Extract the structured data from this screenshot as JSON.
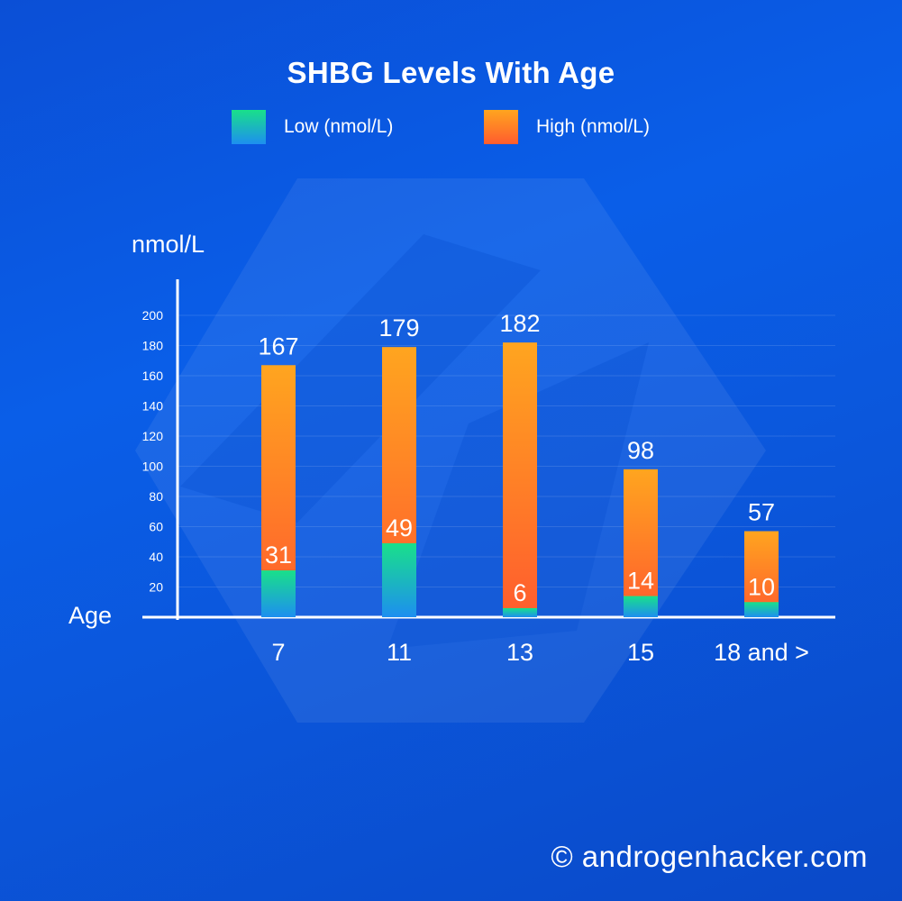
{
  "chart_data": {
    "type": "bar",
    "title": "SHBG Levels With Age",
    "ylabel": "nmol/L",
    "xlabel": "Age",
    "ylim": [
      0,
      200
    ],
    "yticks": [
      20,
      40,
      60,
      80,
      100,
      120,
      140,
      160,
      180,
      200
    ],
    "grid": true,
    "legend_position": "top",
    "categories": [
      "7",
      "11",
      "13",
      "15",
      "18 and >"
    ],
    "series": [
      {
        "name": "Low (nmol/L)",
        "values": [
          31,
          49,
          6,
          14,
          10
        ],
        "color_top": "#19e08a",
        "color_bottom": "#1d8ff0"
      },
      {
        "name": "High (nmol/L)",
        "values": [
          167,
          179,
          182,
          98,
          57
        ],
        "color_top": "#ffa51f",
        "color_bottom": "#ff5c2e"
      }
    ]
  },
  "footer": "© androgenhacker.com"
}
